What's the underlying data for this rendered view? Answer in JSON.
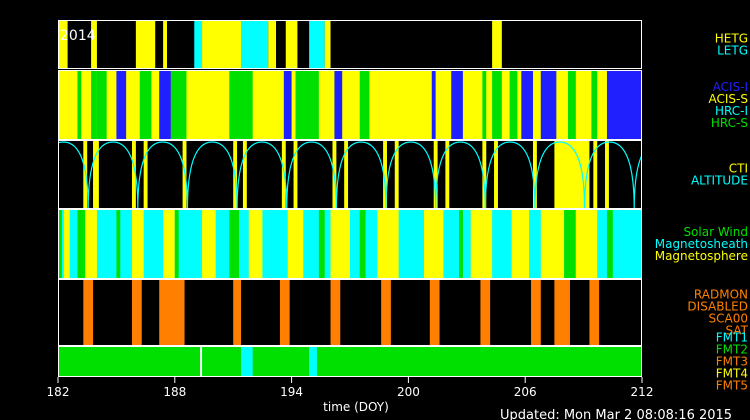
{
  "chart_data": {
    "type": "timeline",
    "year_label": "2014",
    "xlabel": "time (DOY)",
    "updated": "Updated: Mon Mar  2 08:08:16 2015",
    "x_range": [
      182,
      212
    ],
    "x_ticks": [
      "182",
      "188",
      "194",
      "200",
      "206",
      "212"
    ],
    "tick_values": [
      182,
      188,
      194,
      200,
      206,
      212
    ],
    "colors": {
      "black": "#000000",
      "yellow": "#ffff00",
      "cyan": "#00ffff",
      "green": "#00e000",
      "blue": "#2020ff",
      "orange": "#ff8000",
      "white": "#ffffff"
    },
    "panels": [
      {
        "id": "grating",
        "legend": [
          {
            "label": "HETG",
            "color": "#ffff00"
          },
          {
            "label": "LETG",
            "color": "#00ffff"
          }
        ],
        "background": "#000000",
        "segments": [
          [
            182.0,
            182.5,
            "#ffff00"
          ],
          [
            182.5,
            183.7,
            "#000000"
          ],
          [
            183.7,
            184.0,
            "#ffff00"
          ],
          [
            186.0,
            187.0,
            "#ffff00"
          ],
          [
            187.0,
            187.4,
            "#000000"
          ],
          [
            187.4,
            187.6,
            "#ffff00"
          ],
          [
            189.0,
            189.4,
            "#00ffff"
          ],
          [
            189.4,
            191.4,
            "#ffff00"
          ],
          [
            191.4,
            192.8,
            "#00ffff"
          ],
          [
            192.8,
            193.2,
            "#ffff00"
          ],
          [
            193.7,
            194.3,
            "#ffff00"
          ],
          [
            194.9,
            195.7,
            "#00ffff"
          ],
          [
            195.7,
            196.0,
            "#ffff00"
          ],
          [
            204.3,
            204.8,
            "#ffff00"
          ]
        ]
      },
      {
        "id": "instrument",
        "legend": [
          {
            "label": "ACIS-I",
            "color": "#2020ff"
          },
          {
            "label": "ACIS-S",
            "color": "#ffff00"
          },
          {
            "label": "HRC-I",
            "color": "#00ffff"
          },
          {
            "label": "HRC-S",
            "color": "#00e000"
          }
        ],
        "background": "#ffff00",
        "segments": [
          [
            183.0,
            183.2,
            "#00e000"
          ],
          [
            183.7,
            184.0,
            "#00e000"
          ],
          [
            184.0,
            184.5,
            "#00e000"
          ],
          [
            185.0,
            185.5,
            "#2020ff"
          ],
          [
            186.2,
            186.8,
            "#00e000"
          ],
          [
            187.2,
            187.8,
            "#2020ff"
          ],
          [
            187.8,
            188.6,
            "#00e000"
          ],
          [
            190.8,
            192.0,
            "#00e000"
          ],
          [
            193.6,
            194.0,
            "#2020ff"
          ],
          [
            194.2,
            195.4,
            "#00e000"
          ],
          [
            196.2,
            196.6,
            "#2020ff"
          ],
          [
            197.5,
            198.0,
            "#00e000"
          ],
          [
            201.2,
            201.4,
            "#2020ff"
          ],
          [
            202.2,
            202.8,
            "#2020ff"
          ],
          [
            203.8,
            204.0,
            "#00e000"
          ],
          [
            204.3,
            204.8,
            "#00e000"
          ],
          [
            205.2,
            205.6,
            "#00e000"
          ],
          [
            205.8,
            206.4,
            "#2020ff"
          ],
          [
            206.8,
            207.6,
            "#2020ff"
          ],
          [
            208.2,
            208.6,
            "#00e000"
          ],
          [
            209.4,
            209.7,
            "#00e000"
          ],
          [
            210.2,
            212.0,
            "#2020ff"
          ]
        ]
      },
      {
        "id": "radiation",
        "legend": [
          {
            "label": "CTI",
            "color": "#ffff00"
          },
          {
            "label": "ALTITUDE",
            "color": "#00ffff"
          }
        ],
        "background": "#000000",
        "orbit_period": 2.55,
        "orbit_phase": 183.55,
        "segments": [
          [
            183.3,
            183.5,
            "#ffff00"
          ],
          [
            183.8,
            184.1,
            "#ffff00"
          ],
          [
            185.8,
            186.0,
            "#ffff00"
          ],
          [
            186.4,
            186.6,
            "#ffff00"
          ],
          [
            188.4,
            188.6,
            "#ffff00"
          ],
          [
            191.0,
            191.2,
            "#ffff00"
          ],
          [
            191.5,
            191.7,
            "#ffff00"
          ],
          [
            193.5,
            193.7,
            "#ffff00"
          ],
          [
            194.1,
            194.3,
            "#ffff00"
          ],
          [
            196.1,
            196.3,
            "#ffff00"
          ],
          [
            196.7,
            196.9,
            "#ffff00"
          ],
          [
            198.7,
            198.9,
            "#ffff00"
          ],
          [
            199.3,
            199.5,
            "#ffff00"
          ],
          [
            201.3,
            201.5,
            "#ffff00"
          ],
          [
            201.9,
            202.1,
            "#ffff00"
          ],
          [
            203.8,
            204.0,
            "#ffff00"
          ],
          [
            204.4,
            204.6,
            "#ffff00"
          ],
          [
            206.4,
            206.6,
            "#ffff00"
          ],
          [
            207.5,
            209.3,
            "#ffff00"
          ],
          [
            209.5,
            209.7,
            "#ffff00"
          ],
          [
            210.1,
            210.3,
            "#ffff00"
          ]
        ]
      },
      {
        "id": "environment",
        "legend": [
          {
            "label": "Solar Wind",
            "color": "#00e000"
          },
          {
            "label": "Magnetosheath",
            "color": "#00ffff"
          },
          {
            "label": "Magnetosphere",
            "color": "#ffff00"
          }
        ],
        "background": "#00ffff",
        "segments": [
          [
            182.0,
            182.2,
            "#00e000"
          ],
          [
            182.3,
            182.6,
            "#ffff00"
          ],
          [
            183.0,
            183.4,
            "#00e000"
          ],
          [
            183.4,
            184.0,
            "#ffff00"
          ],
          [
            185.0,
            185.2,
            "#00e000"
          ],
          [
            185.8,
            186.4,
            "#ffff00"
          ],
          [
            187.4,
            188.0,
            "#ffff00"
          ],
          [
            188.0,
            188.2,
            "#00e000"
          ],
          [
            189.4,
            190.1,
            "#ffff00"
          ],
          [
            190.8,
            191.3,
            "#00e000"
          ],
          [
            191.8,
            192.5,
            "#ffff00"
          ],
          [
            193.8,
            194.6,
            "#ffff00"
          ],
          [
            195.4,
            195.7,
            "#00e000"
          ],
          [
            196.0,
            197.0,
            "#ffff00"
          ],
          [
            197.5,
            197.8,
            "#00e000"
          ],
          [
            198.4,
            199.5,
            "#ffff00"
          ],
          [
            200.8,
            201.8,
            "#ffff00"
          ],
          [
            202.6,
            202.8,
            "#00e000"
          ],
          [
            203.2,
            204.3,
            "#ffff00"
          ],
          [
            205.3,
            206.2,
            "#ffff00"
          ],
          [
            206.8,
            208.0,
            "#ffff00"
          ],
          [
            208.0,
            208.6,
            "#00e000"
          ],
          [
            208.6,
            209.7,
            "#ffff00"
          ],
          [
            210.2,
            210.5,
            "#00e000"
          ]
        ]
      },
      {
        "id": "radmon",
        "legend": [
          {
            "label": "RADMON",
            "color": "#ff8000"
          },
          {
            "label": "DISABLED",
            "color": "#ff8000"
          },
          {
            "label": "SCA00",
            "color": "#ff8000"
          },
          {
            "label": "SAT",
            "color": "#ff8000"
          }
        ],
        "background": "#000000",
        "segments": [
          [
            183.3,
            183.8,
            "#ff8000"
          ],
          [
            185.8,
            186.3,
            "#ff8000"
          ],
          [
            187.2,
            188.5,
            "#ff8000"
          ],
          [
            191.0,
            191.4,
            "#ff8000"
          ],
          [
            193.4,
            193.9,
            "#ff8000"
          ],
          [
            196.0,
            196.5,
            "#ff8000"
          ],
          [
            198.6,
            199.1,
            "#ff8000"
          ],
          [
            201.1,
            201.6,
            "#ff8000"
          ],
          [
            203.7,
            204.2,
            "#ff8000"
          ],
          [
            206.3,
            206.8,
            "#ff8000"
          ],
          [
            207.5,
            208.3,
            "#ff8000"
          ],
          [
            209.3,
            209.8,
            "#ff8000"
          ]
        ]
      },
      {
        "id": "format",
        "legend": [
          {
            "label": "FMT1",
            "color": "#00ffff"
          },
          {
            "label": "FMT2",
            "color": "#00e000"
          },
          {
            "label": "FMT3",
            "color": "#ff8000"
          },
          {
            "label": "FMT4",
            "color": "#ffff00"
          },
          {
            "label": "FMT5",
            "color": "#ff8000"
          }
        ],
        "background": "#00e000",
        "segments": [
          [
            189.3,
            189.4,
            "#ffffff"
          ],
          [
            191.4,
            192.0,
            "#00ffff"
          ],
          [
            194.9,
            195.3,
            "#00ffff"
          ]
        ]
      }
    ]
  }
}
